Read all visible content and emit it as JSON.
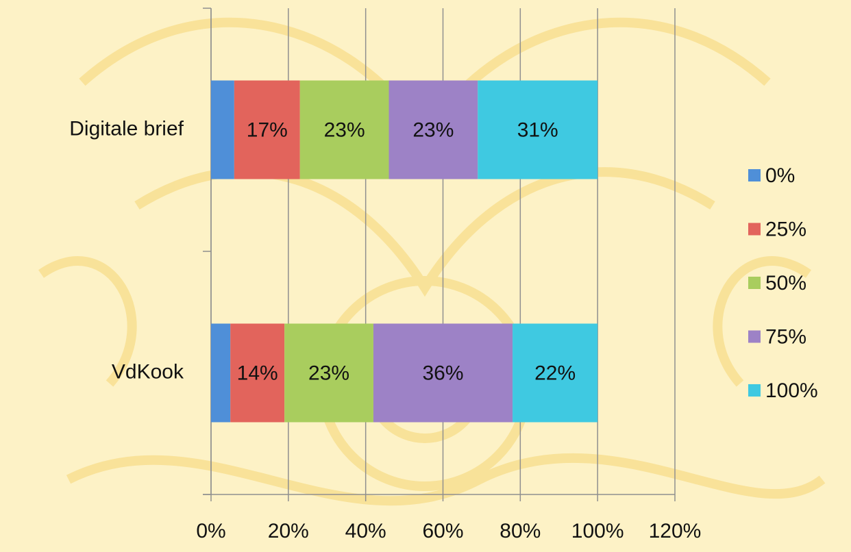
{
  "chart_data": {
    "type": "stacked_barh",
    "categories": [
      "Digitale brief",
      "VdKook"
    ],
    "series": [
      {
        "name": "0%",
        "color": "#4f8fd8",
        "values": [
          6,
          5
        ]
      },
      {
        "name": "25%",
        "color": "#e2645c",
        "values": [
          17,
          14
        ],
        "value_labels": [
          "17%",
          "14%"
        ]
      },
      {
        "name": "50%",
        "color": "#a9cd5e",
        "values": [
          23,
          23
        ],
        "value_labels": [
          "23%",
          "23%"
        ]
      },
      {
        "name": "75%",
        "color": "#9d82c6",
        "values": [
          23,
          36
        ],
        "value_labels": [
          "23%",
          "36%"
        ]
      },
      {
        "name": "100%",
        "color": "#3fc9e1",
        "values": [
          31,
          22
        ],
        "value_labels": [
          "31%",
          "22%"
        ]
      }
    ],
    "xlim": [
      0,
      120
    ],
    "xticks": [
      {
        "value": 0,
        "label": "0%"
      },
      {
        "value": 20,
        "label": "20%"
      },
      {
        "value": 40,
        "label": "40%"
      },
      {
        "value": 60,
        "label": "60%"
      },
      {
        "value": 80,
        "label": "80%"
      },
      {
        "value": 100,
        "label": "100%"
      },
      {
        "value": 120,
        "label": "120%"
      }
    ],
    "grid": true,
    "legend": "right"
  }
}
